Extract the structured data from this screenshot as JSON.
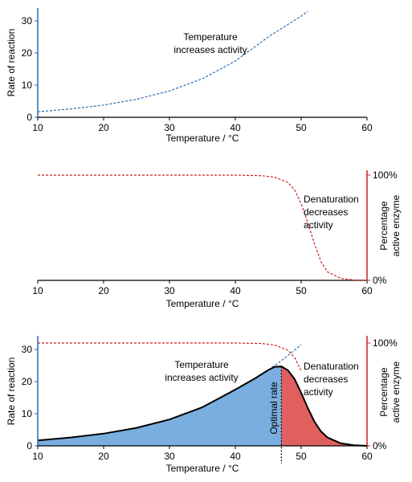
{
  "chart_data": [
    {
      "type": "line",
      "xlabel": "Temperature / °C",
      "ylabel": "Rate of reaction",
      "xlim": [
        10,
        60
      ],
      "ylim": [
        0,
        32
      ],
      "x_ticks": [
        "10",
        "20",
        "30",
        "40",
        "50",
        "60"
      ],
      "y_ticks": [
        "0",
        "10",
        "20",
        "30"
      ],
      "series": [
        {
          "style": "dashed",
          "color": "#2b6bb0",
          "x": [
            10,
            15,
            20,
            25,
            30,
            35,
            40,
            45,
            50,
            51
          ],
          "y": [
            1.7,
            2.6,
            3.8,
            5.6,
            8.2,
            12.0,
            17.5,
            25.0,
            31.5,
            33.0
          ]
        }
      ],
      "annotations": [
        "Temperature",
        "increases activity"
      ]
    },
    {
      "type": "line",
      "xlabel": "Temperature / °C",
      "ylabel": "Percentage active enzyme",
      "ylabel_lines": [
        "Percentage",
        "active enzyme"
      ],
      "xlim": [
        10,
        60
      ],
      "ylim": [
        0,
        100
      ],
      "x_ticks": [
        "10",
        "20",
        "30",
        "40",
        "50",
        "60"
      ],
      "y_ticks": [
        "0%",
        "100%"
      ],
      "series": [
        {
          "style": "dashed",
          "color": "#cc1f1f",
          "x": [
            10,
            20,
            30,
            40,
            44,
            46,
            48,
            49,
            50,
            51,
            52,
            53,
            54,
            56,
            58,
            60
          ],
          "y": [
            100,
            100,
            100,
            100,
            99.5,
            98,
            93,
            86,
            73,
            55,
            35,
            18,
            8,
            2,
            0.3,
            0
          ]
        }
      ],
      "annotations": [
        "Denaturation",
        "decreases",
        "activity"
      ]
    },
    {
      "type": "area",
      "xlabel": "Temperature / °C",
      "ylabel": "Rate of reaction",
      "ylabel_right": "Percentage active enzyme",
      "ylabel_right_lines": [
        "Percentage",
        "active enzyme"
      ],
      "xlim": [
        10,
        60
      ],
      "ylim": [
        0,
        32
      ],
      "x_ticks": [
        "10",
        "20",
        "30",
        "40",
        "50",
        "60"
      ],
      "y_ticks": [
        "0",
        "10",
        "20",
        "30"
      ],
      "y_ticks_right": [
        "0%",
        "100%"
      ],
      "optimum_x": 47,
      "colors": {
        "rise_fill": "#7aaede",
        "fall_fill": "#e06060",
        "curve": "#000000"
      },
      "series": [
        {
          "name": "",
          "style": "solid",
          "x": [
            10,
            15,
            20,
            25,
            30,
            35,
            40,
            43,
            45,
            46,
            47,
            48,
            49,
            50,
            51,
            52,
            53,
            54,
            56,
            58,
            60
          ],
          "y": [
            1.7,
            2.6,
            3.8,
            5.6,
            8.2,
            12.0,
            17.5,
            21.0,
            23.6,
            24.6,
            24.7,
            23.5,
            20.8,
            16.5,
            11.8,
            7.6,
            4.5,
            2.6,
            0.8,
            0.2,
            0
          ]
        },
        {
          "style": "dashed",
          "color": "#2b6bb0",
          "x": [
            43,
            45,
            47,
            49,
            50
          ],
          "y": [
            21.0,
            23.6,
            26.5,
            29.8,
            31.5
          ]
        },
        {
          "style": "dashed",
          "color": "#cc1f1f",
          "x": [
            10,
            20,
            30,
            40,
            44,
            46,
            48,
            49,
            50
          ],
          "y": [
            100,
            100,
            100,
            100,
            99.5,
            98,
            93,
            86,
            73
          ]
        }
      ],
      "annotations": [
        "Temperature",
        "increases activity",
        "Denaturation",
        "decreases",
        "activity",
        "Optimal rate"
      ]
    }
  ]
}
